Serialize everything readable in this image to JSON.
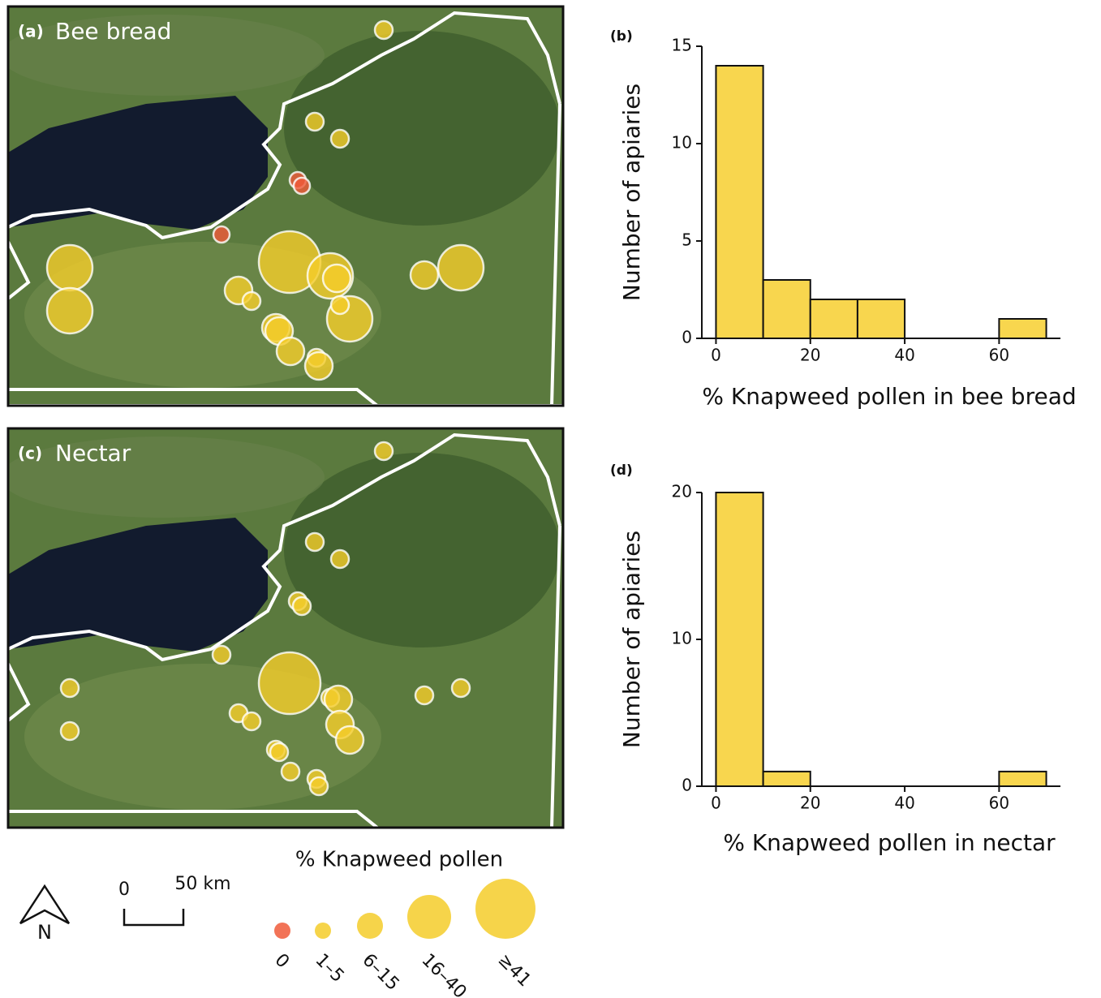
{
  "panels": [
    {
      "label": "(a)",
      "title": "Bee bread"
    },
    {
      "label": "(c)",
      "title": "Nectar"
    }
  ],
  "legend": {
    "title": "% Knapweed pollen",
    "classes": [
      "0",
      "1–5",
      "6–15",
      "16–40",
      "≥41"
    ]
  },
  "scale_bar": {
    "start": "0",
    "end": "50 km"
  },
  "north": "N",
  "chart_data": [
    {
      "type": "histogram",
      "label": "(b)",
      "bins": [
        0,
        10,
        20,
        30,
        40,
        50,
        60,
        70
      ],
      "values": [
        14,
        3,
        2,
        2,
        0,
        0,
        1
      ],
      "color": "#f8d64e",
      "xlim": [
        -3,
        73
      ],
      "ylim": [
        0,
        15
      ],
      "xticks": [
        0,
        20,
        40,
        60
      ],
      "yticks": [
        0,
        5,
        10,
        15
      ],
      "xlabel": "% Knapweed pollen in bee bread",
      "ylabel": "Number of apiaries"
    },
    {
      "type": "histogram",
      "label": "(d)",
      "bins": [
        0,
        10,
        20,
        30,
        40,
        50,
        60,
        70
      ],
      "values": [
        20,
        1,
        0,
        0,
        0,
        0,
        1
      ],
      "color": "#f8d64e",
      "xlim": [
        -3,
        73
      ],
      "ylim": [
        0,
        20
      ],
      "xticks": [
        0,
        20,
        40,
        60
      ],
      "yticks": [
        0,
        10,
        20
      ],
      "xlabel": "% Knapweed pollen in nectar",
      "ylabel": "Number of apiaries"
    }
  ]
}
